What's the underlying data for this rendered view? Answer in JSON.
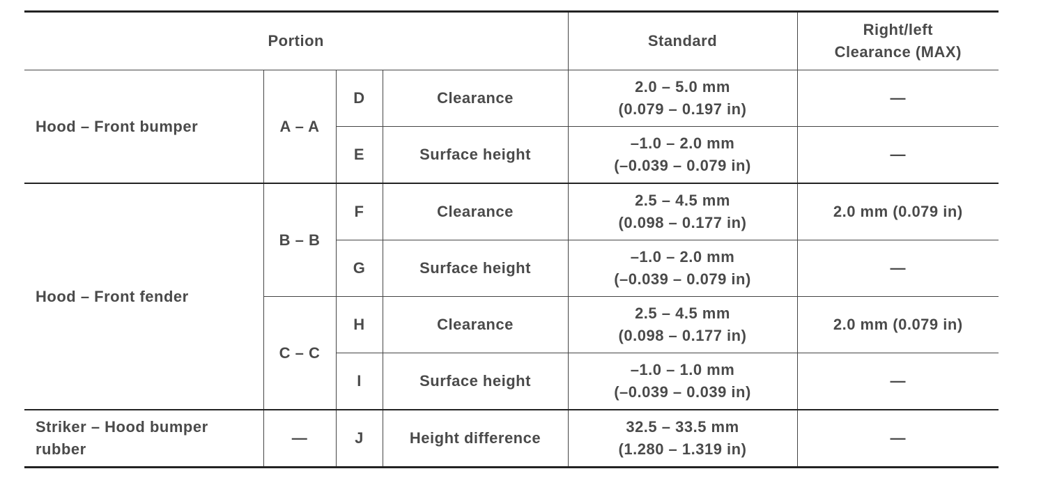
{
  "table": {
    "header": [
      "Portion",
      "Standard",
      "Right/left\nClearance (MAX)"
    ],
    "rows": [
      [
        "Hood – Front bumper",
        "A – A",
        "D",
        "Clearance",
        "2.0 – 5.0 mm\n(0.079 – 0.197 in)",
        "—"
      ],
      [
        "E",
        "Surface height",
        "–1.0 – 2.0 mm\n(–0.039 – 0.079 in)",
        "—"
      ],
      [
        "Hood – Front fender",
        "B – B",
        "F",
        "Clearance",
        "2.5 – 4.5 mm\n(0.098 – 0.177 in)",
        "2.0 mm (0.079 in)"
      ],
      [
        "G",
        "Surface height",
        "–1.0 – 2.0 mm\n(–0.039 – 0.079 in)",
        "—"
      ],
      [
        "C – C",
        "H",
        "Clearance",
        "2.5 – 4.5 mm\n(0.098 – 0.177 in)",
        "2.0 mm (0.079 in)"
      ],
      [
        "I",
        "Surface height",
        "–1.0 – 1.0 mm\n(–0.039 – 0.039 in)",
        "—"
      ],
      [
        "Striker – Hood bumper rubber",
        "—",
        "J",
        "Height difference",
        "32.5 – 33.5 mm\n(1.280 – 1.319 in)",
        "—"
      ]
    ]
  }
}
